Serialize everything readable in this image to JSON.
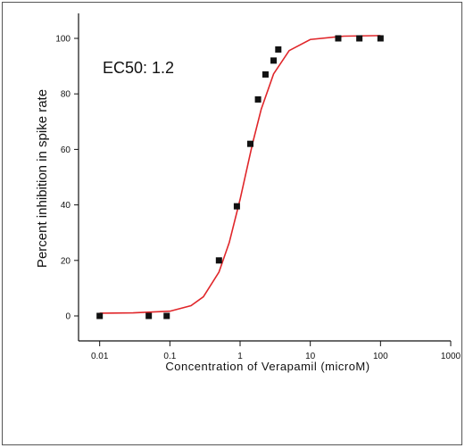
{
  "chart_data": {
    "type": "scatter",
    "annotation": "EC50: 1.2",
    "x_label": "Concentration of Verapamil (microM)",
    "y_label": "Percent inhibition in spike rate",
    "xscale": "log",
    "xlim": [
      0.005,
      1000
    ],
    "xticks": [
      0.01,
      0.1,
      1,
      10,
      100,
      1000
    ],
    "ylim": [
      -9,
      109
    ],
    "yticks": [
      0,
      20,
      40,
      60,
      80,
      100
    ],
    "series": [
      {
        "color": "#111111",
        "marker": "square",
        "x": [
          0.01,
          0.05,
          0.09,
          0.5,
          0.9,
          1.4,
          1.8,
          2.3,
          3,
          3.5,
          25,
          50,
          100
        ],
        "values": [
          0,
          0,
          0,
          20,
          39.5,
          62,
          78,
          87,
          92,
          96,
          100,
          100,
          100
        ]
      },
      {
        "color": "#e0262a",
        "marker": "line",
        "x": [
          0.01,
          0.03,
          0.1,
          0.2,
          0.3,
          0.5,
          0.7,
          1,
          1.5,
          2,
          3,
          5,
          10,
          30,
          100
        ],
        "values": [
          1,
          1.1,
          1.7,
          3.7,
          6.9,
          15.8,
          26.4,
          42,
          62,
          74.5,
          87.2,
          95.6,
          99.6,
          100.8,
          101
        ]
      }
    ]
  }
}
